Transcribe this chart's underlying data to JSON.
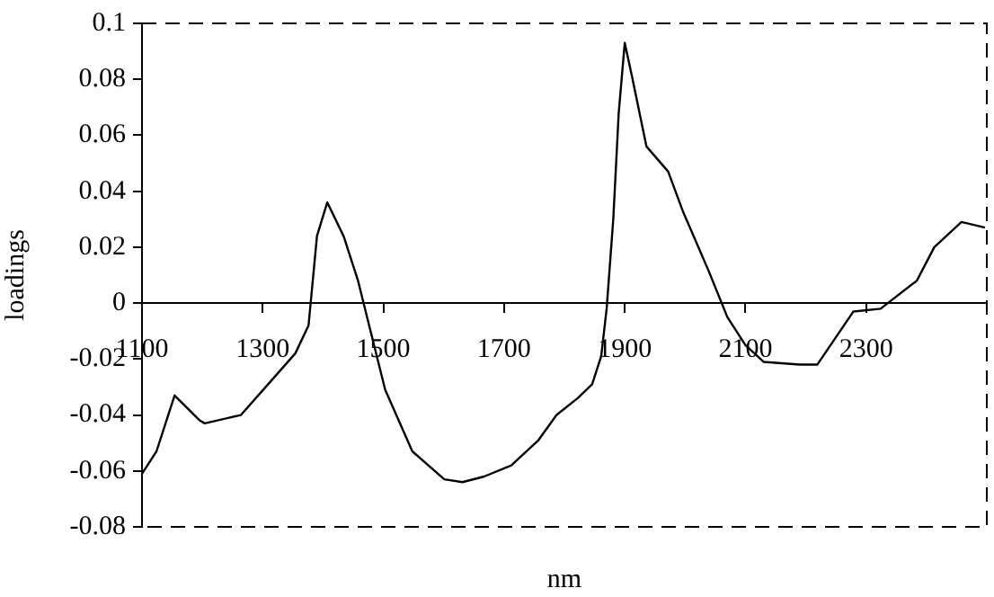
{
  "chart_data": {
    "type": "line",
    "xlabel": "nm",
    "ylabel": "loadings",
    "x": [
      1100,
      1124,
      1154,
      1196,
      1204,
      1264,
      1309,
      1354,
      1376,
      1390,
      1407,
      1434,
      1458,
      1473,
      1503,
      1548,
      1601,
      1631,
      1667,
      1712,
      1757,
      1787,
      1822,
      1846,
      1861,
      1870,
      1881,
      1890,
      1900,
      1912,
      1936,
      1972,
      1996,
      2040,
      2070,
      2100,
      2130,
      2190,
      2219,
      2279,
      2324,
      2384,
      2413,
      2458,
      2497
    ],
    "series": [
      {
        "color": "#000000",
        "values": [
          -0.061,
          -0.053,
          -0.033,
          -0.042,
          -0.043,
          -0.04,
          -0.029,
          -0.018,
          -0.008,
          0.024,
          0.036,
          0.024,
          0.008,
          -0.005,
          -0.031,
          -0.053,
          -0.063,
          -0.064,
          -0.062,
          -0.058,
          -0.049,
          -0.04,
          -0.034,
          -0.029,
          -0.019,
          -0.002,
          0.03,
          0.068,
          0.093,
          0.081,
          0.056,
          0.047,
          0.033,
          0.011,
          -0.005,
          -0.015,
          -0.021,
          -0.022,
          -0.022,
          -0.003,
          -0.002,
          0.008,
          0.02,
          0.029,
          0.027
        ]
      }
    ],
    "xlim": [
      1100,
      2500
    ],
    "xticks": [
      1100,
      1300,
      1500,
      1700,
      1900,
      2100,
      2300
    ],
    "ylim": [
      -0.08,
      0.1
    ],
    "yticks": [
      -0.08,
      -0.06,
      -0.04,
      -0.02,
      0,
      0.02,
      0.04,
      0.06,
      0.08,
      0.1
    ],
    "grid": false,
    "legend": false,
    "marker": "none",
    "line_style": "solid"
  }
}
